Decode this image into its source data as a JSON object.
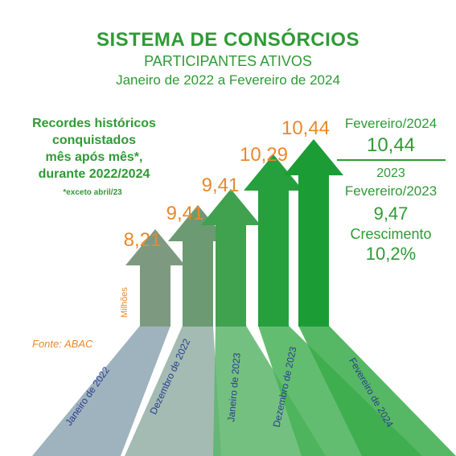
{
  "header": {
    "title": "SISTEMA DE CONSÓRCIOS",
    "subtitle": "PARTICIPANTES ATIVOS",
    "period": "Janeiro de 2022 a Fevereiro de 2024"
  },
  "records_text": {
    "line1": "Recordes históricos",
    "line2": "conquistados",
    "line3": "mês após mês*,",
    "line4": "durante 2022/2024",
    "note": "*exceto abril/23"
  },
  "source": "Fonte: ABAC",
  "unit_label": "Milhões",
  "summary": {
    "current_label": "Fevereiro/2024",
    "current_value": "10,44",
    "prev_year": "2023",
    "prev_label": "Fevereiro/2023",
    "prev_value": "9,47",
    "growth_label": "Crescimento",
    "growth_value": "10,2%"
  },
  "colors": {
    "title_green": "#2f9a35",
    "value_orange": "#e8892c",
    "axis_label_blue": "#2a3d8f",
    "arrow_gray_green": "#76907c",
    "arrow_bright_green": "#1e9c35"
  },
  "chart_data": {
    "type": "bar",
    "categories": [
      "Janeiro de 2022",
      "Dezembro de 2022",
      "Janeiro de 2023",
      "Dezembro de 2023",
      "Fevereiro de 2024"
    ],
    "values": [
      8.21,
      9.41,
      9.41,
      10.29,
      10.44
    ],
    "value_labels": [
      "8,21",
      "9,41",
      "9,41",
      "10,29",
      "10,44"
    ],
    "ylabel": "Milhões",
    "mark_style": "arrow"
  }
}
